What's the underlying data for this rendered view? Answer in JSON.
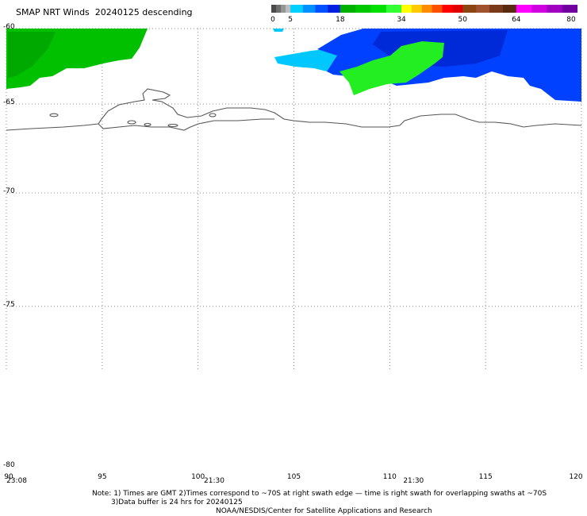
{
  "title": "SMAP NRT Winds  20240125 descending",
  "colorbar": {
    "segments": [
      {
        "from": 0,
        "to": 5,
        "colors": [
          "#4a4a4a",
          "#6e6e6e",
          "#969696",
          "#bdbdbd"
        ]
      },
      {
        "from": 5,
        "to": 18,
        "colors": [
          "#00d0ff",
          "#0090ff",
          "#0050ff",
          "#0020e0"
        ]
      },
      {
        "from": 18,
        "to": 34,
        "colors": [
          "#00b000",
          "#00c800",
          "#00e000",
          "#33ff33"
        ]
      },
      {
        "from": 34,
        "to": 50,
        "colors": [
          "#ffff00",
          "#ffc800",
          "#ff8c00",
          "#ff5000",
          "#ff0000",
          "#e00000"
        ]
      },
      {
        "from": 50,
        "to": 64,
        "colors": [
          "#8b4513",
          "#a0522d",
          "#7a3a1a",
          "#5a2a10"
        ]
      },
      {
        "from": 64,
        "to": 80,
        "colors": [
          "#ff00ff",
          "#d000e0",
          "#a000c0",
          "#7000a0"
        ]
      }
    ],
    "tick_labels": [
      "0",
      "5",
      "18",
      "34",
      "50",
      "64",
      "80"
    ],
    "tick_values": [
      0,
      5,
      18,
      34,
      50,
      64,
      80
    ]
  },
  "axes": {
    "lat_labels": [
      "-60",
      "-65",
      "-70",
      "-75",
      "-80"
    ],
    "lat_values": [
      -60,
      -65,
      -70,
      -75,
      -80
    ],
    "lon_labels": [
      "90",
      "95",
      "100",
      "105",
      "110",
      "115",
      "120"
    ],
    "lon_values": [
      90,
      95,
      100,
      105,
      110,
      115,
      120
    ],
    "lat_range": [
      -80,
      -60
    ],
    "lon_range": [
      90,
      120
    ],
    "grid": "dotted"
  },
  "time_labels": [
    {
      "text": "23:08",
      "lon": 90.5
    },
    {
      "text": "21:30",
      "lon": 100.8
    },
    {
      "text": "21:30",
      "lon": 111.2
    }
  ],
  "note_line1": "Note: 1) Times are GMT 2)Times correspond to ~70S at right swath edge — time is right swath for overlapping swaths at ~70S",
  "note_line2": "3)Data buffer is 24 hrs for 20240125",
  "credit": "NOAA/NESDIS/Center for Satellite Applications and Research",
  "colors": {
    "wind_green": "#00c800",
    "wind_green_light": "#33ee33",
    "wind_blue": "#0040ff",
    "wind_cyan": "#00c8ff",
    "coastline": "#555555",
    "grid": "#888888"
  }
}
